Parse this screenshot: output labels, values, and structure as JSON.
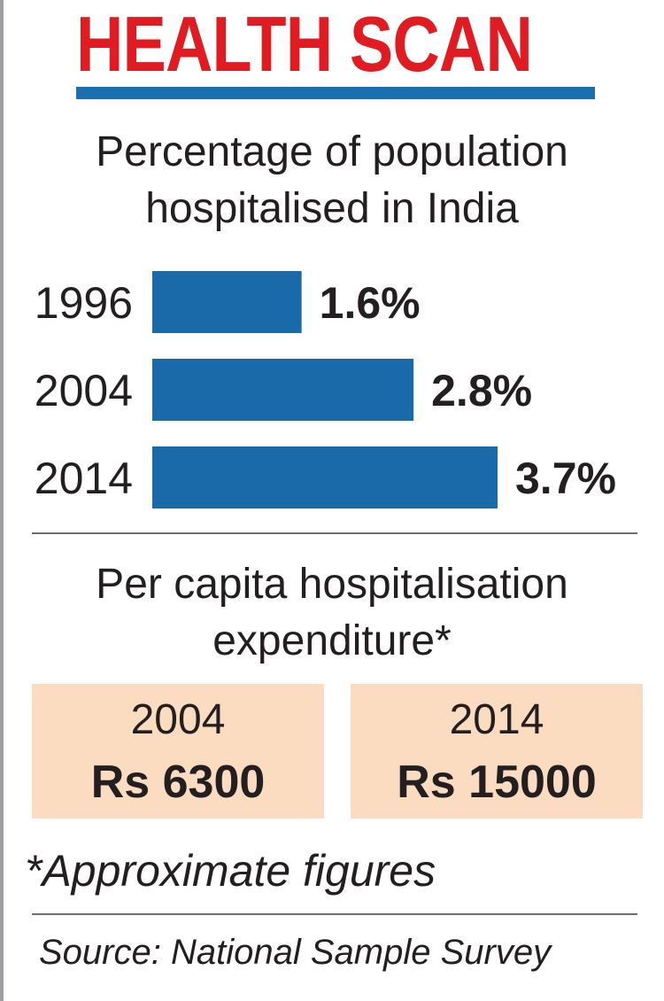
{
  "header": {
    "title": "HEALTH SCAN",
    "title_color": "#e11b22",
    "rule_color": "#1a6fb0"
  },
  "chart_data": {
    "type": "bar",
    "orientation": "horizontal",
    "title_lines": [
      "Percentage of population",
      "hospitalised in India"
    ],
    "categories": [
      "1996",
      "2004",
      "2014"
    ],
    "values": [
      1.6,
      2.8,
      3.7
    ],
    "value_labels": [
      "1.6%",
      "2.8%",
      "3.7%"
    ],
    "unit": "%",
    "xlim": [
      0,
      3.7
    ],
    "grid": false,
    "bar_color": "#1a6aaa"
  },
  "expenditure": {
    "title_lines": [
      "Per capita hospitalisation",
      "expenditure*"
    ],
    "card_color": "#fbdcc0",
    "cards": [
      {
        "year": "2004",
        "amount": "Rs 6300"
      },
      {
        "year": "2014",
        "amount": "Rs 15000"
      }
    ]
  },
  "footnote": "*Approximate figures",
  "source": "Source: National Sample Survey"
}
